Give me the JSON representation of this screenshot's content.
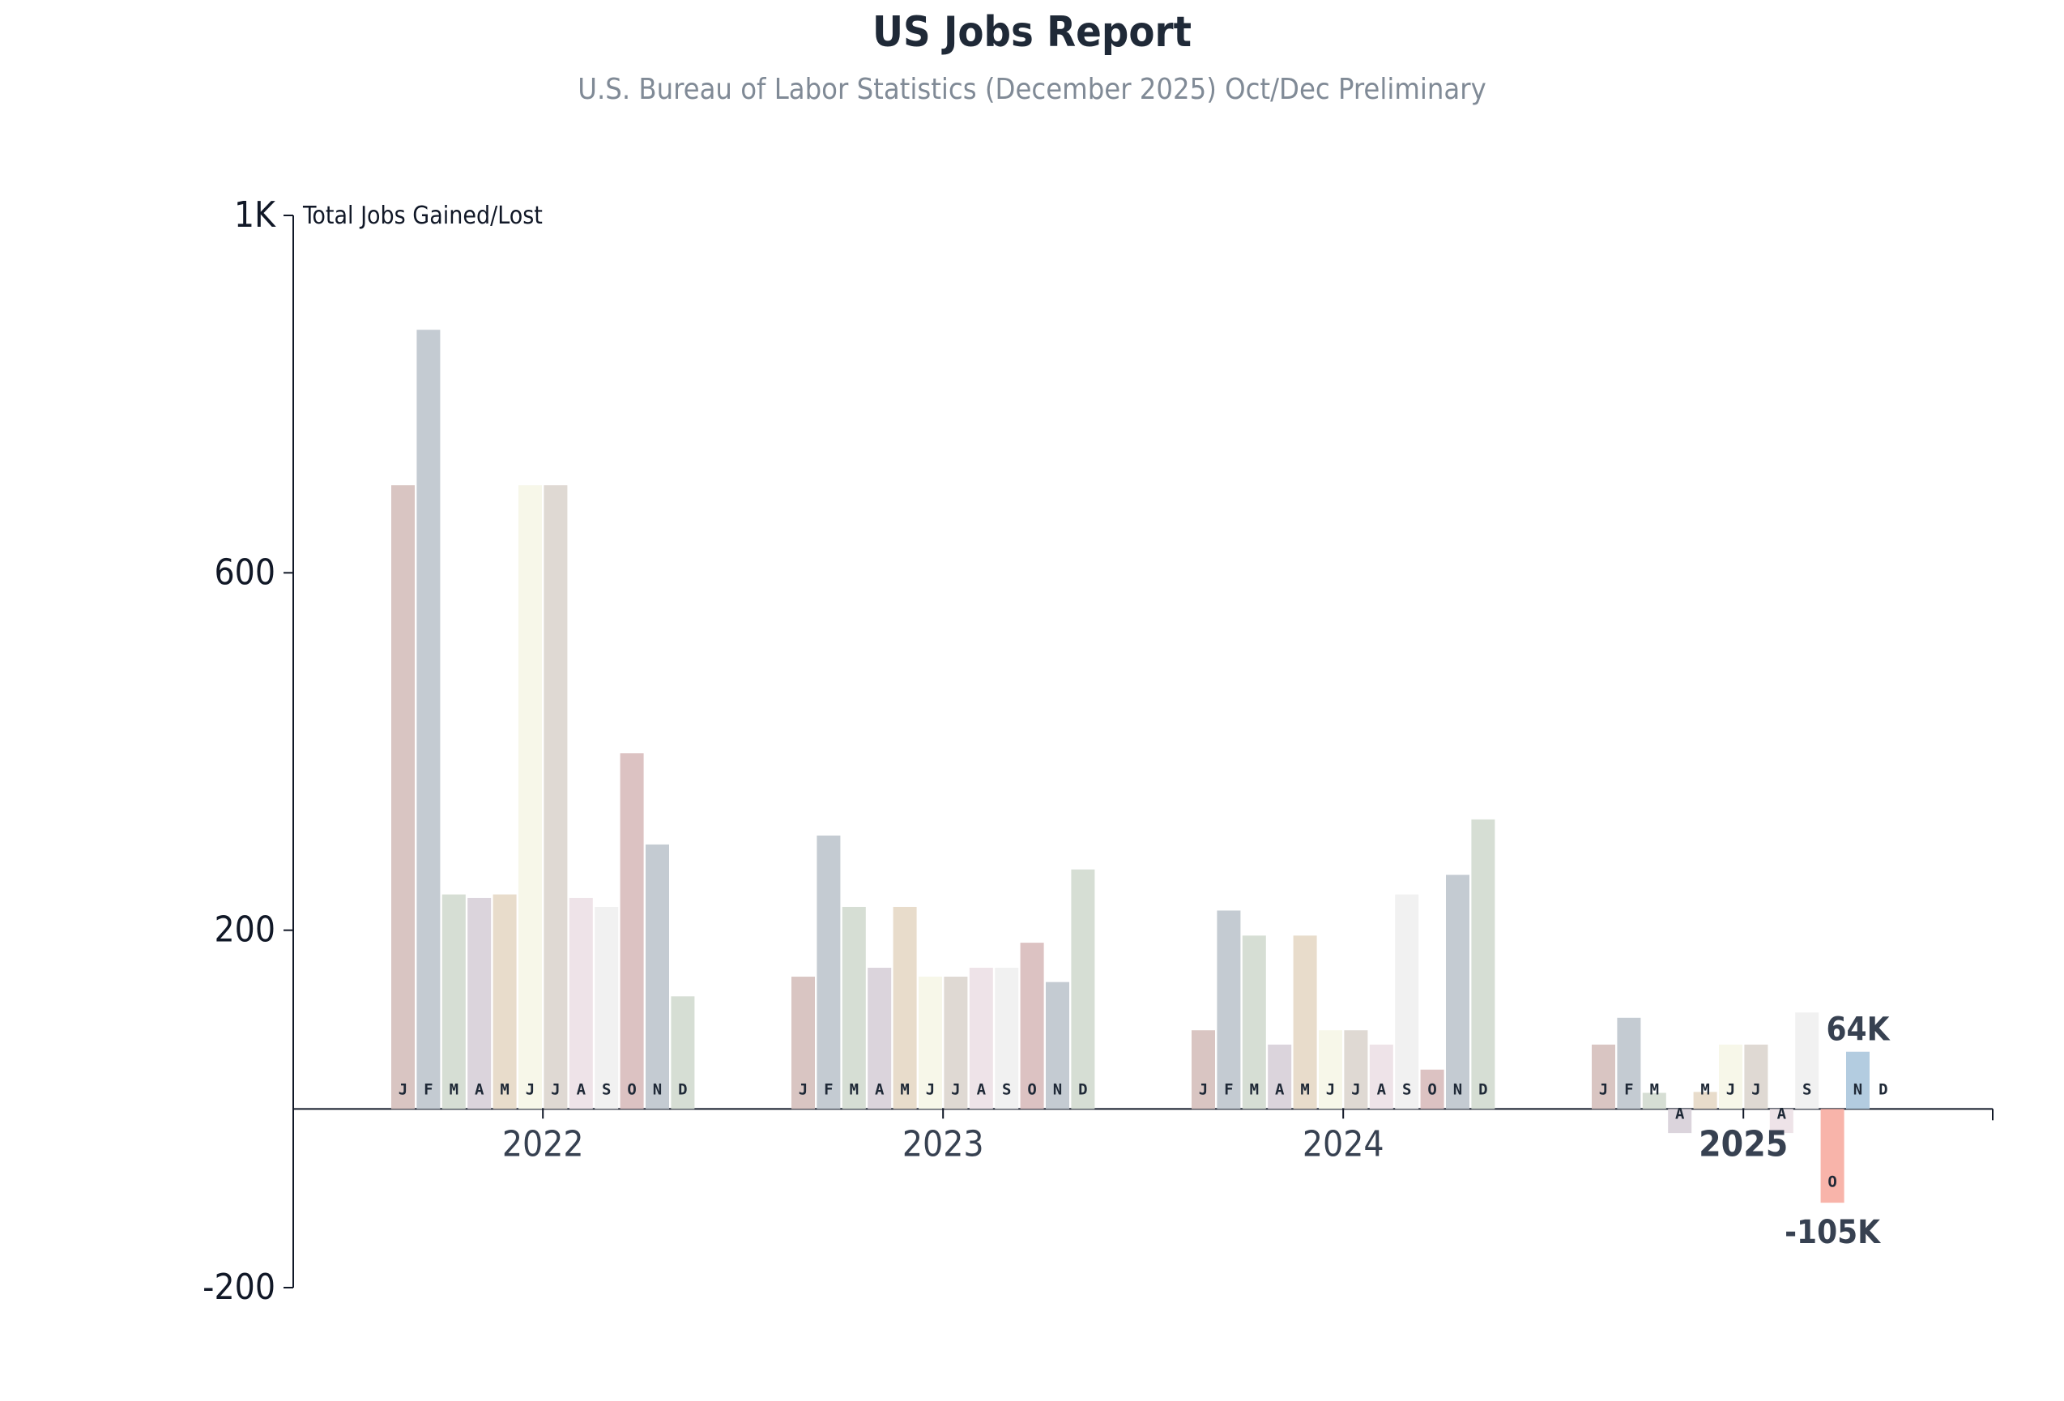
{
  "chart_data": {
    "type": "bar",
    "title": "US Jobs Report",
    "subtitle": "U.S. Bureau of Labor Statistics (December 2025) Oct/Dec Preliminary",
    "ylabel": "Total Jobs Gained/Lost",
    "ylim": [
      -200,
      1000
    ],
    "yticks": [
      -200,
      200,
      600,
      1000
    ],
    "ytick_labels": [
      "-200",
      "200",
      "600",
      "1K"
    ],
    "grid": false,
    "month_labels": [
      "J",
      "F",
      "M",
      "A",
      "M",
      "J",
      "J",
      "A",
      "S",
      "O",
      "N",
      "D"
    ],
    "colors": [
      "#d9c5c2",
      "#c4cbd2",
      "#d6ded4",
      "#dbd4dc",
      "#e8dccb",
      "#f7f7e9",
      "#dfd9d3",
      "#eee3e8",
      "#f1f1f1",
      "#dcc2c2",
      "#c4cbd2",
      "#d6ded4"
    ],
    "highlight_colors": {
      "negative": "#f8b4aa",
      "positive": "#b3cce0"
    },
    "years": [
      {
        "year": "2022",
        "values": [
          698,
          872,
          240,
          236,
          240,
          698,
          698,
          236,
          226,
          398,
          296,
          126
        ]
      },
      {
        "year": "2023",
        "values": [
          148,
          306,
          226,
          158,
          226,
          148,
          148,
          158,
          158,
          186,
          142,
          268
        ]
      },
      {
        "year": "2024",
        "values": [
          88,
          222,
          194,
          72,
          194,
          88,
          88,
          72,
          240,
          44,
          262,
          324
        ]
      },
      {
        "year": "2025",
        "values": [
          72,
          102,
          18,
          -27,
          19,
          72,
          72,
          -27,
          108,
          -105,
          64,
          null
        ]
      }
    ],
    "annotations": [
      {
        "year": "2025",
        "month_index": 9,
        "text": "-105K"
      },
      {
        "year": "2025",
        "month_index": 10,
        "text": "64K"
      }
    ]
  }
}
